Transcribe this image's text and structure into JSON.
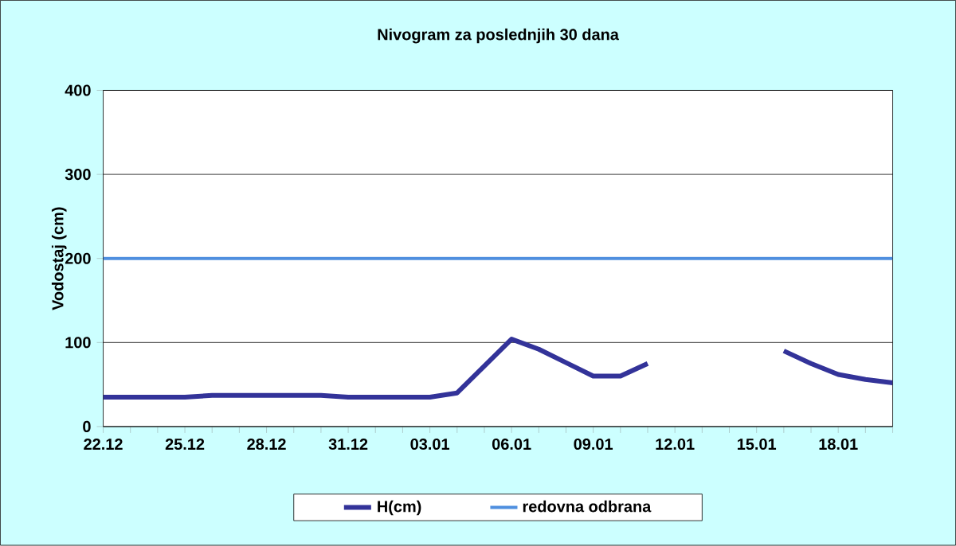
{
  "chart_data": {
    "type": "line",
    "title": "Nivogram za poslednjih 30 dana",
    "ylabel": "Vodostaj (cm)",
    "categories": [
      "22.12",
      null,
      null,
      "25.12",
      null,
      null,
      "28.12",
      null,
      null,
      "31.12",
      null,
      null,
      "03.01",
      null,
      null,
      "06.01",
      null,
      null,
      "09.01",
      null,
      null,
      "12.01",
      null,
      null,
      "15.01",
      null,
      null,
      "18.01",
      null,
      null
    ],
    "series": [
      {
        "name": "H(cm)",
        "color": "#333399",
        "values": [
          35,
          35,
          35,
          35,
          37,
          37,
          37,
          37,
          37,
          35,
          35,
          35,
          35,
          40,
          72,
          104,
          92,
          76,
          60,
          60,
          75,
          null,
          null,
          null,
          null,
          90,
          75,
          62,
          56,
          52
        ]
      }
    ],
    "ref_lines": [
      {
        "axis": "y",
        "value": 200,
        "label": "redovna odbrana",
        "color": "#4f8fdf"
      }
    ],
    "ylim": [
      0,
      400
    ],
    "yticks": [
      0,
      100,
      200,
      300,
      400
    ],
    "grid": "y",
    "legend": "bottom"
  }
}
